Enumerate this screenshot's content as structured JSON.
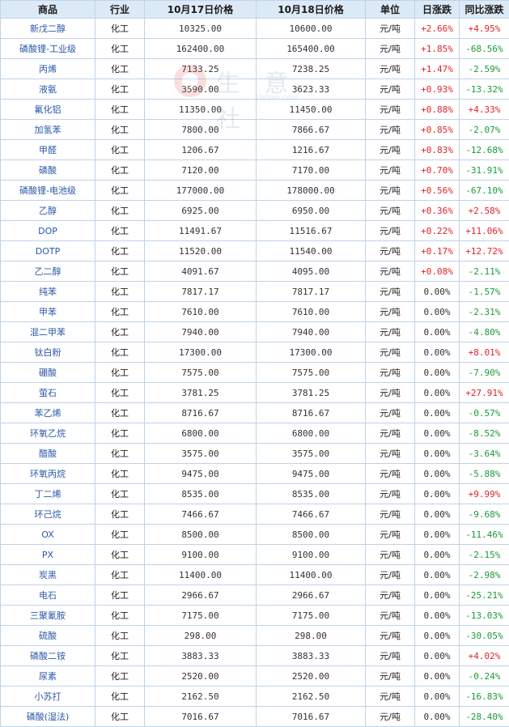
{
  "columns": [
    "商品",
    "行业",
    "10月17日价格",
    "10月18日价格",
    "单位",
    "日涨跌",
    "同比涨跌"
  ],
  "watermark": {
    "text": "生 意 社",
    "url": "100ppi.com"
  },
  "rows": [
    {
      "name": "新戊二醇",
      "industry": "化工",
      "p1": "10325.00",
      "p2": "10600.00",
      "unit": "元/吨",
      "day": "+2.66%",
      "yoy": "+4.95%"
    },
    {
      "name": "磷酸锂-工业级",
      "industry": "化工",
      "p1": "162400.00",
      "p2": "165400.00",
      "unit": "元/吨",
      "day": "+1.85%",
      "yoy": "-68.56%"
    },
    {
      "name": "丙烯",
      "industry": "化工",
      "p1": "7133.25",
      "p2": "7238.25",
      "unit": "元/吨",
      "day": "+1.47%",
      "yoy": "-2.59%"
    },
    {
      "name": "液氨",
      "industry": "化工",
      "p1": "3590.00",
      "p2": "3623.33",
      "unit": "元/吨",
      "day": "+0.93%",
      "yoy": "-13.32%"
    },
    {
      "name": "氟化铝",
      "industry": "化工",
      "p1": "11350.00",
      "p2": "11450.00",
      "unit": "元/吨",
      "day": "+0.88%",
      "yoy": "+4.33%"
    },
    {
      "name": "加氢苯",
      "industry": "化工",
      "p1": "7800.00",
      "p2": "7866.67",
      "unit": "元/吨",
      "day": "+0.85%",
      "yoy": "-2.07%"
    },
    {
      "name": "甲醛",
      "industry": "化工",
      "p1": "1206.67",
      "p2": "1216.67",
      "unit": "元/吨",
      "day": "+0.83%",
      "yoy": "-12.68%"
    },
    {
      "name": "磷酸",
      "industry": "化工",
      "p1": "7120.00",
      "p2": "7170.00",
      "unit": "元/吨",
      "day": "+0.70%",
      "yoy": "-31.91%"
    },
    {
      "name": "磷酸锂-电池级",
      "industry": "化工",
      "p1": "177000.00",
      "p2": "178000.00",
      "unit": "元/吨",
      "day": "+0.56%",
      "yoy": "-67.10%"
    },
    {
      "name": "乙醇",
      "industry": "化工",
      "p1": "6925.00",
      "p2": "6950.00",
      "unit": "元/吨",
      "day": "+0.36%",
      "yoy": "+2.58%"
    },
    {
      "name": "DOP",
      "industry": "化工",
      "p1": "11491.67",
      "p2": "11516.67",
      "unit": "元/吨",
      "day": "+0.22%",
      "yoy": "+11.06%"
    },
    {
      "name": "DOTP",
      "industry": "化工",
      "p1": "11520.00",
      "p2": "11540.00",
      "unit": "元/吨",
      "day": "+0.17%",
      "yoy": "+12.72%"
    },
    {
      "name": "乙二醇",
      "industry": "化工",
      "p1": "4091.67",
      "p2": "4095.00",
      "unit": "元/吨",
      "day": "+0.08%",
      "yoy": "-2.11%"
    },
    {
      "name": "纯苯",
      "industry": "化工",
      "p1": "7817.17",
      "p2": "7817.17",
      "unit": "元/吨",
      "day": "0.00%",
      "yoy": "-1.57%"
    },
    {
      "name": "甲苯",
      "industry": "化工",
      "p1": "7610.00",
      "p2": "7610.00",
      "unit": "元/吨",
      "day": "0.00%",
      "yoy": "-2.31%"
    },
    {
      "name": "混二甲苯",
      "industry": "化工",
      "p1": "7940.00",
      "p2": "7940.00",
      "unit": "元/吨",
      "day": "0.00%",
      "yoy": "-4.80%"
    },
    {
      "name": "钛白粉",
      "industry": "化工",
      "p1": "17300.00",
      "p2": "17300.00",
      "unit": "元/吨",
      "day": "0.00%",
      "yoy": "+8.01%"
    },
    {
      "name": "硼酸",
      "industry": "化工",
      "p1": "7575.00",
      "p2": "7575.00",
      "unit": "元/吨",
      "day": "0.00%",
      "yoy": "-7.90%"
    },
    {
      "name": "萤石",
      "industry": "化工",
      "p1": "3781.25",
      "p2": "3781.25",
      "unit": "元/吨",
      "day": "0.00%",
      "yoy": "+27.91%"
    },
    {
      "name": "苯乙烯",
      "industry": "化工",
      "p1": "8716.67",
      "p2": "8716.67",
      "unit": "元/吨",
      "day": "0.00%",
      "yoy": "-0.57%"
    },
    {
      "name": "环氧乙烷",
      "industry": "化工",
      "p1": "6800.00",
      "p2": "6800.00",
      "unit": "元/吨",
      "day": "0.00%",
      "yoy": "-8.52%"
    },
    {
      "name": "醋酸",
      "industry": "化工",
      "p1": "3575.00",
      "p2": "3575.00",
      "unit": "元/吨",
      "day": "0.00%",
      "yoy": "-3.64%"
    },
    {
      "name": "环氧丙烷",
      "industry": "化工",
      "p1": "9475.00",
      "p2": "9475.00",
      "unit": "元/吨",
      "day": "0.00%",
      "yoy": "-5.88%"
    },
    {
      "name": "丁二烯",
      "industry": "化工",
      "p1": "8535.00",
      "p2": "8535.00",
      "unit": "元/吨",
      "day": "0.00%",
      "yoy": "+9.99%"
    },
    {
      "name": "环己烷",
      "industry": "化工",
      "p1": "7466.67",
      "p2": "7466.67",
      "unit": "元/吨",
      "day": "0.00%",
      "yoy": "-9.68%"
    },
    {
      "name": "OX",
      "industry": "化工",
      "p1": "8500.00",
      "p2": "8500.00",
      "unit": "元/吨",
      "day": "0.00%",
      "yoy": "-11.46%"
    },
    {
      "name": "PX",
      "industry": "化工",
      "p1": "9100.00",
      "p2": "9100.00",
      "unit": "元/吨",
      "day": "0.00%",
      "yoy": "-2.15%"
    },
    {
      "name": "炭黑",
      "industry": "化工",
      "p1": "11400.00",
      "p2": "11400.00",
      "unit": "元/吨",
      "day": "0.00%",
      "yoy": "-2.98%"
    },
    {
      "name": "电石",
      "industry": "化工",
      "p1": "2966.67",
      "p2": "2966.67",
      "unit": "元/吨",
      "day": "0.00%",
      "yoy": "-25.21%"
    },
    {
      "name": "三聚氰胺",
      "industry": "化工",
      "p1": "7175.00",
      "p2": "7175.00",
      "unit": "元/吨",
      "day": "0.00%",
      "yoy": "-13.03%"
    },
    {
      "name": "硫酸",
      "industry": "化工",
      "p1": "298.00",
      "p2": "298.00",
      "unit": "元/吨",
      "day": "0.00%",
      "yoy": "-30.05%"
    },
    {
      "name": "磷酸二铵",
      "industry": "化工",
      "p1": "3883.33",
      "p2": "3883.33",
      "unit": "元/吨",
      "day": "0.00%",
      "yoy": "+4.02%"
    },
    {
      "name": "尿素",
      "industry": "化工",
      "p1": "2520.00",
      "p2": "2520.00",
      "unit": "元/吨",
      "day": "0.00%",
      "yoy": "-0.24%"
    },
    {
      "name": "小苏打",
      "industry": "化工",
      "p1": "2162.50",
      "p2": "2162.50",
      "unit": "元/吨",
      "day": "0.00%",
      "yoy": "-16.83%"
    },
    {
      "name": "磷酸(湿法)",
      "industry": "化工",
      "p1": "7016.67",
      "p2": "7016.67",
      "unit": "元/吨",
      "day": "0.00%",
      "yoy": "-28.40%"
    }
  ]
}
